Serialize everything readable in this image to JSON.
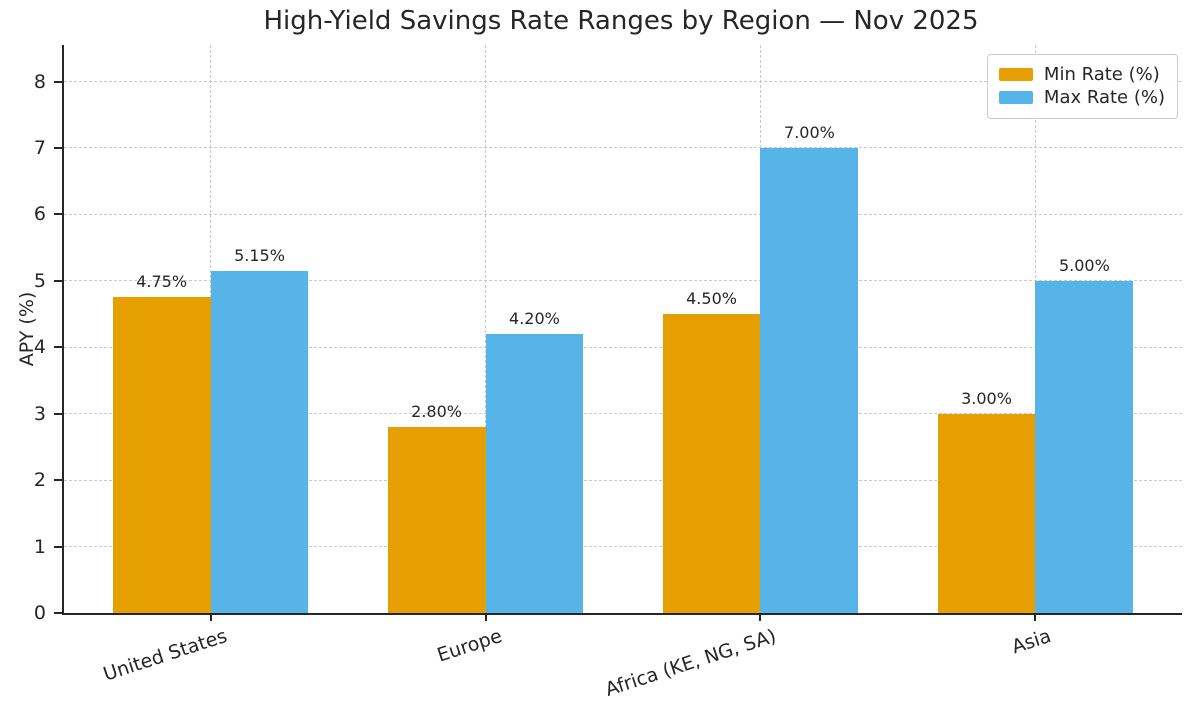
{
  "figure": {
    "background_color": "#ffffff",
    "text_color": "#262626",
    "grid_color": "#c9c9c9",
    "spine_color": "#262626"
  },
  "chart_data": {
    "type": "bar",
    "title": "High-Yield Savings Rate Ranges by Region — Nov 2025",
    "xlabel": "",
    "ylabel": "APY (%)",
    "categories": [
      "United States",
      "Europe",
      "Africa (KE, NG, SA)",
      "Asia"
    ],
    "series": [
      {
        "name": "Min Rate (%)",
        "color": "#E69F00",
        "values": [
          4.75,
          2.8,
          4.5,
          3.0
        ],
        "value_labels": [
          "4.75%",
          "2.80%",
          "4.50%",
          "3.00%"
        ]
      },
      {
        "name": "Max Rate (%)",
        "color": "#56B4E9",
        "values": [
          5.15,
          4.2,
          7.0,
          5.0
        ],
        "value_labels": [
          "5.15%",
          "4.20%",
          "7.00%",
          "5.00%"
        ]
      }
    ],
    "ylim": [
      0,
      8.55
    ],
    "yticks": [
      0,
      1,
      2,
      3,
      4,
      5,
      6,
      7,
      8
    ],
    "grid": true,
    "grid_style": "dashed",
    "legend_position": "upper right",
    "xtick_rotation_deg": -18
  }
}
